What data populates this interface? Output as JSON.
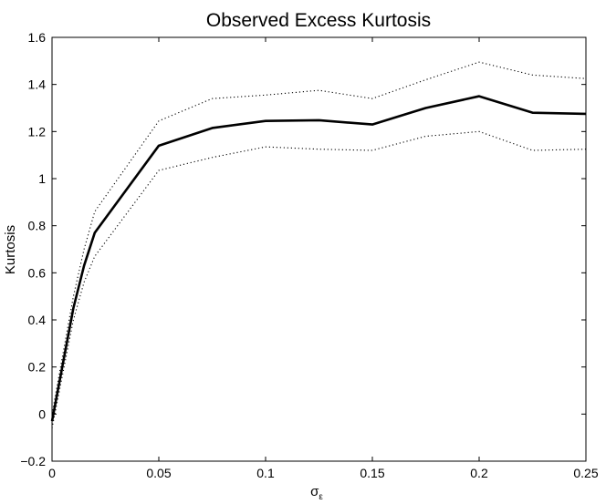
{
  "chart_data": {
    "type": "line",
    "title": "Observed Excess Kurtosis",
    "xlabel": "σ",
    "xlabel_subscript": "ε",
    "ylabel": "Kurtosis",
    "xlim": [
      0,
      0.25
    ],
    "ylim": [
      -0.2,
      1.6
    ],
    "xticks": [
      0,
      0.05,
      0.1,
      0.15,
      0.2,
      0.25
    ],
    "xtick_labels": [
      "0",
      "0.05",
      "0.1",
      "0.15",
      "0.2",
      "0.25"
    ],
    "yticks": [
      -0.2,
      0,
      0.2,
      0.4,
      0.6,
      0.8,
      1,
      1.2,
      1.4,
      1.6
    ],
    "ytick_labels": [
      "−0.2",
      "0",
      "0.2",
      "0.4",
      "0.6",
      "0.8",
      "1",
      "1.2",
      "1.4",
      "1.6"
    ],
    "grid": false,
    "legend": false,
    "x": [
      0,
      0.01,
      0.015,
      0.02,
      0.05,
      0.075,
      0.1,
      0.125,
      0.15,
      0.175,
      0.2,
      0.225,
      0.25
    ],
    "series": [
      {
        "style": "solid",
        "color": "#000000",
        "values": [
          -0.03,
          0.45,
          0.63,
          0.77,
          1.14,
          1.215,
          1.245,
          1.248,
          1.23,
          1.3,
          1.35,
          1.28,
          1.275
        ]
      },
      {
        "style": "dotted",
        "color": "#000000",
        "values": [
          0.0,
          0.5,
          0.7,
          0.86,
          1.245,
          1.34,
          1.355,
          1.375,
          1.34,
          1.42,
          1.495,
          1.44,
          1.425
        ]
      },
      {
        "style": "dotted",
        "color": "#000000",
        "values": [
          -0.06,
          0.4,
          0.56,
          0.67,
          1.035,
          1.09,
          1.135,
          1.125,
          1.12,
          1.18,
          1.2,
          1.12,
          1.125
        ]
      }
    ]
  }
}
